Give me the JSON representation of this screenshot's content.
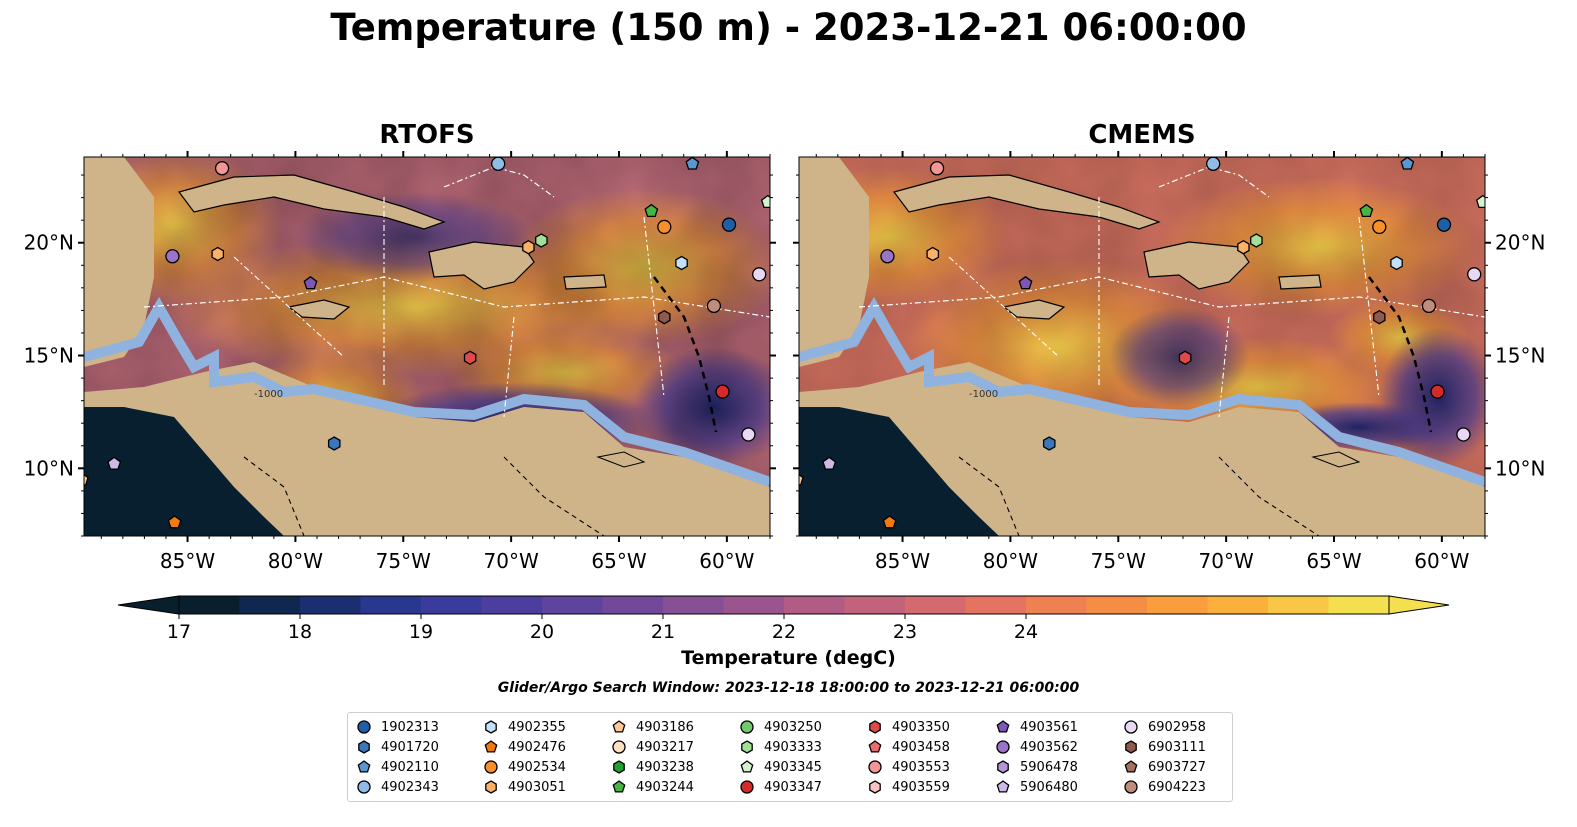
{
  "title": "Temperature (150 m) - 2023-12-21 06:00:00",
  "panels": [
    {
      "title": "RTOFS"
    },
    {
      "title": "CMEMS"
    }
  ],
  "map": {
    "lon_ticks": [
      "85°W",
      "80°W",
      "75°W",
      "70°W",
      "65°W",
      "60°W"
    ],
    "lat_ticks": [
      "20°N",
      "15°N",
      "10°N"
    ],
    "contour_label": "-1000",
    "colors": {
      "land": "#cfb48a",
      "shelf": "#8fb2de",
      "deep": "#071f2e"
    }
  },
  "colorbar": {
    "label": "Temperature (degC)",
    "ticks": [
      "17",
      "18",
      "19",
      "20",
      "21",
      "22",
      "23",
      "24"
    ],
    "colors": [
      "#0a1f2e",
      "#10284e",
      "#1b2f70",
      "#2a3790",
      "#3a3b9c",
      "#4c3e9e",
      "#5e449c",
      "#72499a",
      "#875095",
      "#9a548e",
      "#b05c85",
      "#c3627b",
      "#d46a6f",
      "#e47361",
      "#ef8052",
      "#f68d45",
      "#f99d3d",
      "#fbb03b",
      "#f8c746",
      "#f4df50"
    ]
  },
  "search_window": "Glider/Argo Search Window: 2023-12-18 18:00:00 to 2023-12-21 06:00:00",
  "legend": {
    "items": [
      {
        "id": "1902313",
        "shape": "circle",
        "color": "#1f5fa8"
      },
      {
        "id": "4901720",
        "shape": "hexagon",
        "color": "#3a76b8"
      },
      {
        "id": "4902110",
        "shape": "pentagon",
        "color": "#5a96d0"
      },
      {
        "id": "4902343",
        "shape": "circle",
        "color": "#8fbde8"
      },
      {
        "id": "4902355",
        "shape": "hexagon",
        "color": "#c2e0f7"
      },
      {
        "id": "4902476",
        "shape": "pentagon",
        "color": "#f07a0f"
      },
      {
        "id": "4902534",
        "shape": "circle",
        "color": "#f8902a"
      },
      {
        "id": "4903051",
        "shape": "hexagon",
        "color": "#fbb266"
      },
      {
        "id": "4903186",
        "shape": "pentagon",
        "color": "#fcc894"
      },
      {
        "id": "4903217",
        "shape": "circle",
        "color": "#fde0c2"
      },
      {
        "id": "4903238",
        "shape": "hexagon",
        "color": "#22a02c"
      },
      {
        "id": "4903244",
        "shape": "pentagon",
        "color": "#46b444"
      },
      {
        "id": "4903250",
        "shape": "circle",
        "color": "#71c96a"
      },
      {
        "id": "4903333",
        "shape": "hexagon",
        "color": "#a4df98"
      },
      {
        "id": "4903345",
        "shape": "pentagon",
        "color": "#d2f3cc"
      },
      {
        "id": "4903347",
        "shape": "circle",
        "color": "#d42a2a"
      },
      {
        "id": "4903350",
        "shape": "hexagon",
        "color": "#de4a4a"
      },
      {
        "id": "4903458",
        "shape": "pentagon",
        "color": "#ea6d6d"
      },
      {
        "id": "4903553",
        "shape": "circle",
        "color": "#f29696"
      },
      {
        "id": "4903559",
        "shape": "hexagon",
        "color": "#fac4c4"
      },
      {
        "id": "4903561",
        "shape": "pentagon",
        "color": "#7e56b6"
      },
      {
        "id": "4903562",
        "shape": "circle",
        "color": "#9a74c8"
      },
      {
        "id": "5906478",
        "shape": "hexagon",
        "color": "#b496d8"
      },
      {
        "id": "5906480",
        "shape": "pentagon",
        "color": "#ceb8e6"
      },
      {
        "id": "6902958",
        "shape": "circle",
        "color": "#e8d8f4"
      },
      {
        "id": "6903111",
        "shape": "hexagon",
        "color": "#8c5a4e"
      },
      {
        "id": "6903727",
        "shape": "pentagon",
        "color": "#a5705f"
      },
      {
        "id": "6904223",
        "shape": "circle",
        "color": "#c08c7c"
      }
    ]
  },
  "markers": [
    {
      "id": "4903562",
      "lon": -85.7,
      "lat": 19.4
    },
    {
      "id": "4903051",
      "lon": -83.6,
      "lat": 19.5
    },
    {
      "id": "4903553",
      "lon": -83.4,
      "lat": 23.3
    },
    {
      "id": "4903561",
      "lon": -79.3,
      "lat": 18.2
    },
    {
      "id": "4901720",
      "lon": -78.2,
      "lat": 11.1
    },
    {
      "id": "4903350",
      "lon": -71.9,
      "lat": 14.9
    },
    {
      "id": "4903333",
      "lon": -68.6,
      "lat": 20.1
    },
    {
      "id": "4903051",
      "lon": -69.2,
      "lat": 19.8
    },
    {
      "id": "4903244",
      "lon": -63.5,
      "lat": 21.4
    },
    {
      "id": "4902534",
      "lon": -62.9,
      "lat": 20.7
    },
    {
      "id": "4902355",
      "lon": -62.1,
      "lat": 19.1
    },
    {
      "id": "1902313",
      "lon": -59.9,
      "lat": 20.8
    },
    {
      "id": "4903345",
      "lon": -58.1,
      "lat": 21.8
    },
    {
      "id": "6902958",
      "lon": -58.5,
      "lat": 18.6
    },
    {
      "id": "6904223",
      "lon": -60.6,
      "lat": 17.2
    },
    {
      "id": "6903111",
      "lon": -62.9,
      "lat": 16.7
    },
    {
      "id": "4903347",
      "lon": -60.2,
      "lat": 13.4
    },
    {
      "id": "6902958",
      "lon": -59.0,
      "lat": 11.5
    },
    {
      "id": "5906480",
      "lon": -88.4,
      "lat": 10.2
    },
    {
      "id": "4902476",
      "lon": -85.6,
      "lat": 7.6
    },
    {
      "id": "4903186",
      "lon": -89.9,
      "lat": 9.5
    },
    {
      "id": "4902343",
      "lon": -70.6,
      "lat": 23.5
    },
    {
      "id": "4902110",
      "lon": -61.6,
      "lat": 23.5
    }
  ]
}
